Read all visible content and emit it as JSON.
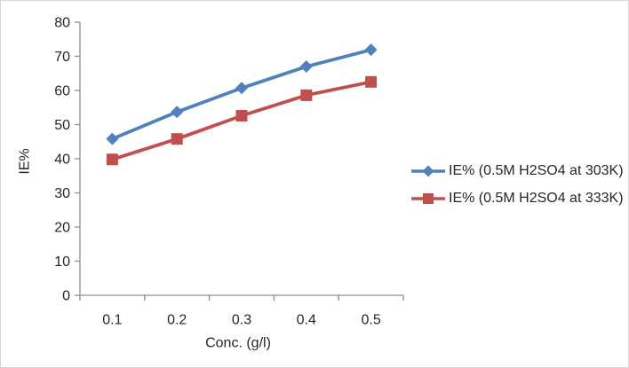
{
  "chart_data": {
    "type": "line",
    "title": "",
    "xlabel": "Conc. (g/l)",
    "ylabel": "IE%",
    "x": [
      0.1,
      0.2,
      0.3,
      0.4,
      0.5
    ],
    "x_tick_labels": [
      "0.1",
      "0.2",
      "0.3",
      "0.4",
      "0.5"
    ],
    "ylim": [
      0,
      80
    ],
    "y_ticks": [
      0,
      10,
      20,
      30,
      40,
      50,
      60,
      70,
      80
    ],
    "grid": false,
    "legend_position": "right",
    "series": [
      {
        "name": "IE% (0.5M H2SO4 at 303K)",
        "marker": "diamond",
        "color": "#4F81BD",
        "values": [
          45.8,
          53.7,
          60.7,
          67.0,
          71.9
        ]
      },
      {
        "name": "IE% (0.5M H2SO4 at 333K)",
        "marker": "square",
        "color": "#C0504D",
        "values": [
          39.8,
          45.8,
          52.6,
          58.6,
          62.5
        ]
      }
    ]
  },
  "colors": {
    "series_303k": "#4F81BD",
    "series_333k": "#C0504D",
    "axis_line": "#8f8f8f",
    "text": "#262626",
    "frame_border": "#d6d6d6",
    "background": "#ffffff"
  }
}
